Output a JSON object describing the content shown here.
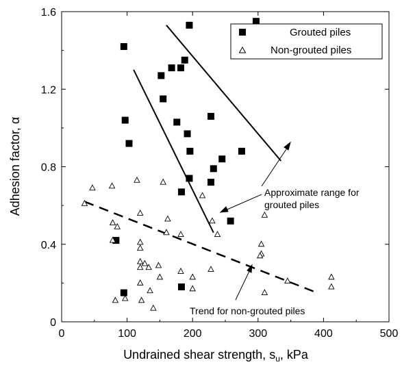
{
  "chart_data": {
    "type": "scatter",
    "xlabel": "Undrained shear strength, s",
    "xlabel_sub": "u",
    "xlabel_unit": ", kPa",
    "ylabel": "Adhesion factor, α",
    "xlim": [
      0,
      500
    ],
    "ylim": [
      0,
      1.6
    ],
    "xticks": [
      "0",
      "100",
      "200",
      "300",
      "400",
      "500"
    ],
    "yticks": [
      "0",
      "0.4",
      "0.8",
      "1.2",
      "1.6"
    ],
    "legend": {
      "placement": "top-right",
      "entries": [
        "Grouted piles",
        "Non-grouted piles"
      ]
    },
    "series": [
      {
        "name": "Grouted piles",
        "marker": "filled-square",
        "points": [
          [
            95,
            1.42
          ],
          [
            97,
            1.04
          ],
          [
            103,
            0.92
          ],
          [
            152,
            1.27
          ],
          [
            155,
            1.15
          ],
          [
            168,
            1.31
          ],
          [
            176,
            1.03
          ],
          [
            182,
            1.31
          ],
          [
            188,
            1.35
          ],
          [
            192,
            0.97
          ],
          [
            195,
            1.53
          ],
          [
            196,
            0.88
          ],
          [
            195,
            0.74
          ],
          [
            183,
            0.67
          ],
          [
            228,
            1.06
          ],
          [
            228,
            0.72
          ],
          [
            232,
            0.79
          ],
          [
            245,
            0.84
          ],
          [
            275,
            0.88
          ],
          [
            258,
            0.52
          ],
          [
            83,
            0.42
          ],
          [
            95,
            0.15
          ],
          [
            183,
            0.18
          ],
          [
            297,
            1.55
          ]
        ]
      },
      {
        "name": "Non-grouted piles",
        "marker": "open-triangle",
        "points": [
          [
            35,
            0.61
          ],
          [
            47,
            0.69
          ],
          [
            77,
            0.7
          ],
          [
            115,
            0.73
          ],
          [
            155,
            0.72
          ],
          [
            120,
            0.56
          ],
          [
            78,
            0.51
          ],
          [
            85,
            0.49
          ],
          [
            78,
            0.42
          ],
          [
            120,
            0.41
          ],
          [
            120,
            0.38
          ],
          [
            162,
            0.53
          ],
          [
            160,
            0.46
          ],
          [
            182,
            0.45
          ],
          [
            215,
            0.65
          ],
          [
            230,
            0.52
          ],
          [
            238,
            0.45
          ],
          [
            305,
            0.4
          ],
          [
            305,
            0.35
          ],
          [
            303,
            0.34
          ],
          [
            310,
            0.55
          ],
          [
            120,
            0.31
          ],
          [
            127,
            0.3
          ],
          [
            120,
            0.28
          ],
          [
            133,
            0.28
          ],
          [
            148,
            0.29
          ],
          [
            120,
            0.2
          ],
          [
            150,
            0.23
          ],
          [
            182,
            0.26
          ],
          [
            200,
            0.23
          ],
          [
            228,
            0.27
          ],
          [
            135,
            0.16
          ],
          [
            82,
            0.11
          ],
          [
            97,
            0.12
          ],
          [
            122,
            0.11
          ],
          [
            140,
            0.07
          ],
          [
            200,
            0.17
          ],
          [
            310,
            0.15
          ],
          [
            345,
            0.21
          ],
          [
            412,
            0.23
          ],
          [
            412,
            0.18
          ]
        ]
      }
    ],
    "lines": [
      {
        "name": "grouted-upper-bound",
        "style": "solid",
        "x": [
          160,
          335
        ],
        "y": [
          1.53,
          0.83
        ]
      },
      {
        "name": "grouted-lower-bound",
        "style": "solid",
        "x": [
          110,
          232
        ],
        "y": [
          1.3,
          0.46
        ]
      },
      {
        "name": "non-grouted-trend",
        "style": "dashed",
        "x": [
          35,
          390
        ],
        "y": [
          0.62,
          0.15
        ]
      }
    ],
    "annotations": [
      {
        "text": "Approximate range for",
        "text2": "grouted piles"
      },
      {
        "text": "Trend for non-grouted piles"
      }
    ]
  }
}
